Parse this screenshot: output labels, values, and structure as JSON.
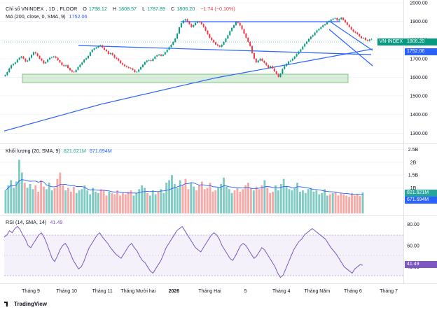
{
  "price_pane": {
    "title_parts": [
      "Chỉ số VNINDEX",
      "1D",
      "FLOOR"
    ],
    "ohlc": {
      "o_label": "O",
      "o": "1798.12",
      "h_label": "H",
      "h": "1808.57",
      "l_label": "L",
      "l": "1787.89",
      "c_label": "C",
      "c": "1806.20",
      "change": "−1.74 (−0.10%)"
    },
    "ma_label": "MA (200, close, 0, SMA, 9)",
    "ma_value": "1752.06",
    "last_tag": {
      "name": "VN-INDEX",
      "value": "1806.20",
      "color": "#089981"
    },
    "ma_tag": {
      "value": "1752.06",
      "color": "#2962ff"
    }
  },
  "volume_pane": {
    "label": "Khối lượng (20, SMA, 9)",
    "value1": "821.621M",
    "value2": "671.694M",
    "tag1": {
      "value": "821.621M",
      "color": "#26a69a"
    },
    "tag2": {
      "value": "671.694M",
      "color": "#2962ff"
    }
  },
  "rsi_pane": {
    "label": "RSI (14, SMA, 14)",
    "value": "41.49",
    "tag": {
      "value": "41.49",
      "color": "#7e57c2"
    }
  },
  "brand": "TradingView",
  "chart_data": [
    {
      "type": "line",
      "name": "price",
      "title": "Chỉ số VNINDEX, 1D, FLOOR",
      "x_ticks": [
        "Tháng 9",
        "Tháng 10",
        "Tháng 11",
        "Tháng Mười hai",
        "2026",
        "Tháng Hai",
        "5",
        "Tháng 4",
        "Tháng Năm",
        "Tháng 6",
        "Tháng 7"
      ],
      "y_ticks": [
        1300,
        1400,
        1500,
        1600,
        1700,
        1800,
        1900,
        2000
      ],
      "ylim": [
        1245,
        2015
      ],
      "series": [
        {
          "name": "VNINDEX close",
          "values": [
            1612,
            1628,
            1648,
            1665,
            1672,
            1680,
            1695,
            1705,
            1712,
            1700,
            1685,
            1690,
            1705,
            1720,
            1735,
            1728,
            1715,
            1700,
            1690,
            1675,
            1682,
            1696,
            1705,
            1708,
            1712,
            1705,
            1692,
            1680,
            1666,
            1660,
            1665,
            1650,
            1638,
            1630,
            1628,
            1640,
            1655,
            1668,
            1680,
            1695,
            1702,
            1715,
            1735,
            1748,
            1755,
            1760,
            1768,
            1772,
            1760,
            1748,
            1740,
            1725,
            1730,
            1720,
            1705,
            1700,
            1690,
            1676,
            1668,
            1660,
            1655,
            1650,
            1648,
            1640,
            1628,
            1630,
            1642,
            1655,
            1668,
            1682,
            1690,
            1692,
            1688,
            1700,
            1712,
            1718,
            1722,
            1715,
            1722,
            1735,
            1748,
            1762,
            1775,
            1790,
            1808,
            1835,
            1868,
            1890,
            1905,
            1912,
            1900,
            1885,
            1870,
            1880,
            1892,
            1900,
            1895,
            1885,
            1870,
            1850,
            1832,
            1812,
            1800,
            1788,
            1776,
            1770,
            1764,
            1775,
            1790,
            1808,
            1826,
            1848,
            1866,
            1880,
            1898,
            1892,
            1878,
            1858,
            1835,
            1812,
            1790,
            1768,
            1730,
            1700,
            1680,
            1690,
            1700,
            1688,
            1678,
            1665,
            1650,
            1660,
            1648,
            1632,
            1618,
            1602,
            1620,
            1645,
            1660,
            1672,
            1685,
            1690,
            1700,
            1712,
            1725,
            1738,
            1750,
            1765,
            1780,
            1792,
            1806,
            1818,
            1826,
            1840,
            1852,
            1860,
            1870,
            1880,
            1885,
            1896,
            1902,
            1910,
            1915,
            1918,
            1905,
            1912,
            1920,
            1908,
            1895,
            1882,
            1870,
            1856,
            1845,
            1840,
            1832,
            1820,
            1810,
            1812,
            1800,
            1796,
            1803,
            1806
          ]
        },
        {
          "name": "MA 200",
          "values": [
            1312,
            1318,
            1324,
            1330,
            1336,
            1342,
            1348,
            1354,
            1360,
            1366,
            1372,
            1378,
            1384,
            1390,
            1396,
            1402,
            1408,
            1414,
            1420,
            1426,
            1432,
            1438,
            1444,
            1450,
            1456,
            1461,
            1466,
            1471,
            1476,
            1481,
            1486,
            1491,
            1496,
            1501,
            1506,
            1511,
            1516,
            1521,
            1526,
            1531,
            1536,
            1541,
            1546,
            1551,
            1556,
            1561,
            1566,
            1571,
            1576,
            1581,
            1586,
            1591,
            1596,
            1600,
            1604,
            1608,
            1612,
            1616,
            1620,
            1624,
            1628,
            1632,
            1636,
            1640,
            1644,
            1648,
            1652,
            1656,
            1660,
            1664,
            1668,
            1672,
            1676,
            1680,
            1684,
            1688,
            1692,
            1696,
            1700,
            1704,
            1708,
            1712,
            1716,
            1720,
            1724,
            1728,
            1732,
            1736,
            1740,
            1744,
            1748,
            1752
          ]
        }
      ],
      "last_value": 1806.2,
      "ma_last": 1752.06
    },
    {
      "type": "bar",
      "name": "volume",
      "title": "Khối lượng (20, SMA, 9)",
      "y_ticks": [
        "1B",
        "1.5B",
        "2B",
        "2.5B"
      ],
      "ylim": [
        0,
        2.6
      ],
      "values_billion": [
        0.9,
        1.1,
        1.3,
        1.0,
        1.25,
        2.1,
        1.6,
        1.2,
        1.0,
        1.15,
        0.95,
        1.1,
        0.85,
        1.3,
        1.05,
        0.95,
        1.2,
        0.9,
        1.0,
        1.35,
        1.6,
        1.1,
        0.9,
        1.0,
        0.85,
        1.05,
        0.8,
        0.9,
        0.95,
        1.1,
        0.9,
        0.75,
        1.0,
        0.85,
        0.8,
        0.95,
        0.9,
        0.7,
        0.85,
        0.8,
        0.75,
        0.9,
        0.7,
        0.8,
        0.75,
        0.85,
        0.9,
        0.7,
        0.8,
        0.95,
        1.1,
        1.0,
        0.8,
        0.7,
        0.9,
        0.75,
        0.85,
        0.95,
        0.8,
        1.2,
        1.3,
        1.5,
        1.15,
        1.0,
        1.3,
        1.1,
        1.35,
        0.95,
        1.2,
        1.05,
        0.9,
        1.1,
        1.25,
        0.95,
        1.0,
        1.2,
        0.85,
        0.9,
        1.0,
        1.15,
        1.4,
        1.05,
        0.95,
        0.8,
        0.9,
        1.0,
        0.85,
        0.95,
        1.1,
        1.2,
        1.0,
        0.9,
        1.05,
        0.95,
        1.1,
        1.3,
        1.0,
        0.8,
        0.85,
        1.1,
        0.9,
        1.15,
        1.35,
        1.05,
        0.95,
        0.9,
        1.0,
        1.2,
        0.85,
        0.9,
        0.8,
        0.95,
        1.0,
        0.85,
        0.9,
        0.75,
        0.8,
        0.95,
        0.7,
        0.75,
        0.8,
        0.85,
        0.7,
        0.8,
        0.75,
        0.7,
        0.65,
        0.8,
        0.7,
        0.75,
        0.68,
        0.82
      ],
      "sma_last": "671.694M",
      "last": "821.621M"
    },
    {
      "type": "line",
      "name": "rsi",
      "title": "RSI (14, SMA, 14)",
      "y_ticks": [
        40,
        60,
        80
      ],
      "ylim": [
        25,
        85
      ],
      "band": [
        30,
        70
      ],
      "values": [
        68,
        70,
        74,
        72,
        76,
        78,
        75,
        70,
        66,
        60,
        58,
        62,
        66,
        70,
        72,
        68,
        62,
        55,
        48,
        45,
        50,
        56,
        60,
        62,
        58,
        52,
        46,
        42,
        38,
        40,
        45,
        52,
        58,
        62,
        66,
        70,
        72,
        68,
        65,
        62,
        58,
        55,
        52,
        50,
        48,
        52,
        56,
        60,
        62,
        58,
        55,
        50,
        46,
        44,
        40,
        36,
        34,
        38,
        42,
        46,
        52,
        58,
        62,
        66,
        70,
        74,
        76,
        78,
        74,
        70,
        66,
        62,
        58,
        56,
        54,
        58,
        62,
        66,
        70,
        72,
        70,
        66,
        60,
        56,
        52,
        48,
        46,
        50,
        55,
        60,
        62,
        60,
        56,
        52,
        48,
        50,
        54,
        58,
        56,
        52,
        48,
        44,
        40,
        34,
        30,
        32,
        38,
        44,
        50,
        56,
        60,
        64,
        66,
        70,
        72,
        74,
        76,
        74,
        72,
        70,
        68,
        66,
        62,
        58,
        55,
        52,
        48,
        44,
        40,
        38,
        36,
        34,
        38,
        40,
        42,
        41.49
      ],
      "last": 41.49
    }
  ]
}
